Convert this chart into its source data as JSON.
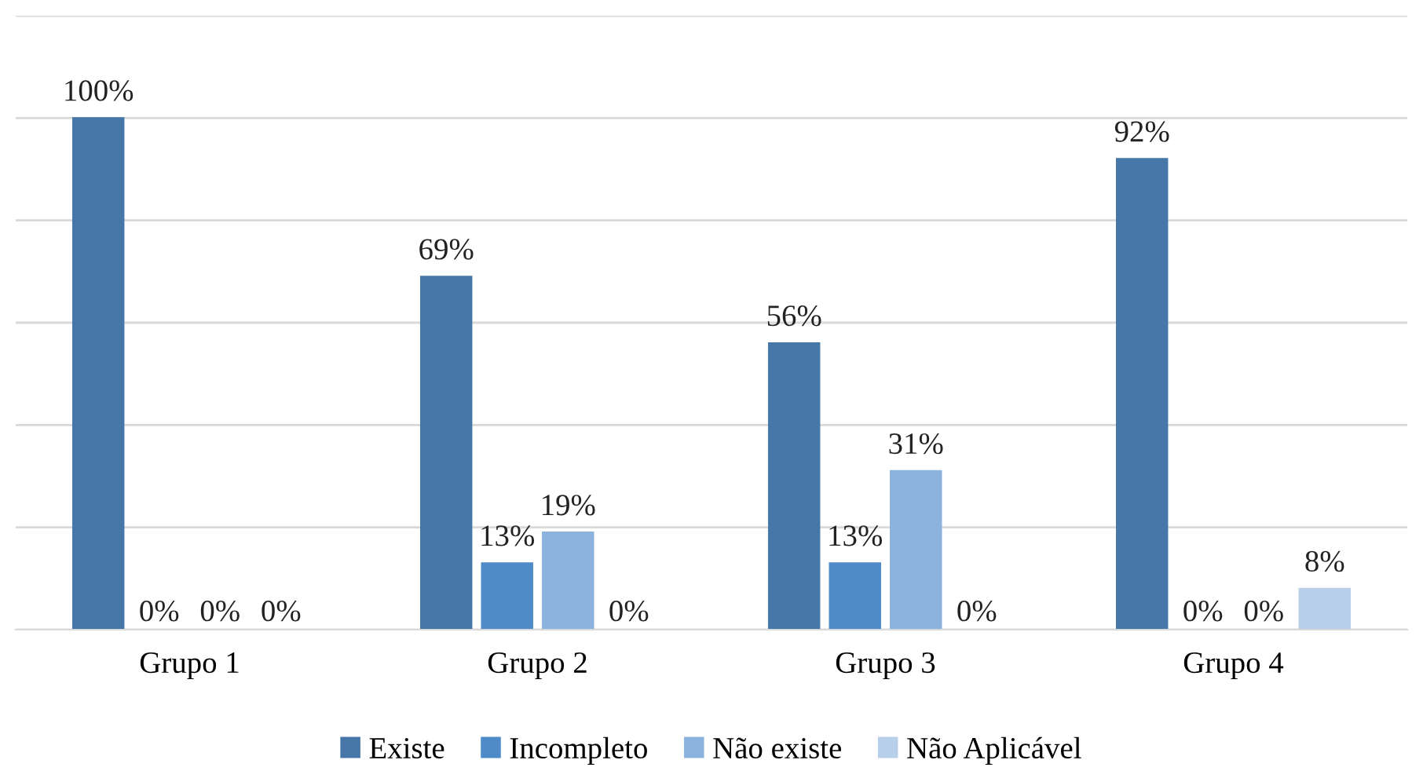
{
  "chart_data": {
    "type": "bar",
    "categories": [
      "Grupo 1",
      "Grupo 2",
      "Grupo 3",
      "Grupo 4"
    ],
    "series": [
      {
        "name": "Existe",
        "color": "#4677a8",
        "values": [
          100,
          69,
          56,
          92
        ],
        "value_labels": [
          "100%",
          "69%",
          "56%",
          "92%"
        ]
      },
      {
        "name": "Incompleto",
        "color": "#4f8bc9",
        "values": [
          0,
          13,
          13,
          0
        ],
        "value_labels": [
          "0%",
          "13%",
          "13%",
          "0%"
        ]
      },
      {
        "name": "Não existe",
        "color": "#8cb3de",
        "values": [
          0,
          19,
          31,
          0
        ],
        "value_labels": [
          "0%",
          "19%",
          "31%",
          "0%"
        ]
      },
      {
        "name": "Não Aplicável",
        "color": "#b8cfe9",
        "values": [
          0,
          0,
          0,
          8
        ],
        "value_labels": [
          "0%",
          "0%",
          "0%",
          "8%"
        ]
      }
    ],
    "ylim": [
      0,
      120
    ],
    "yticks": [
      {
        "value": 0,
        "label": null
      },
      {
        "value": 20,
        "label": null
      },
      {
        "value": 40,
        "label": null
      },
      {
        "value": 60,
        "label": null
      },
      {
        "value": 80,
        "label": null
      },
      {
        "value": 100,
        "label": null
      },
      {
        "value": 120,
        "label": null
      }
    ],
    "tick_labels": "x",
    "grid": "y",
    "legend": "bottom"
  }
}
